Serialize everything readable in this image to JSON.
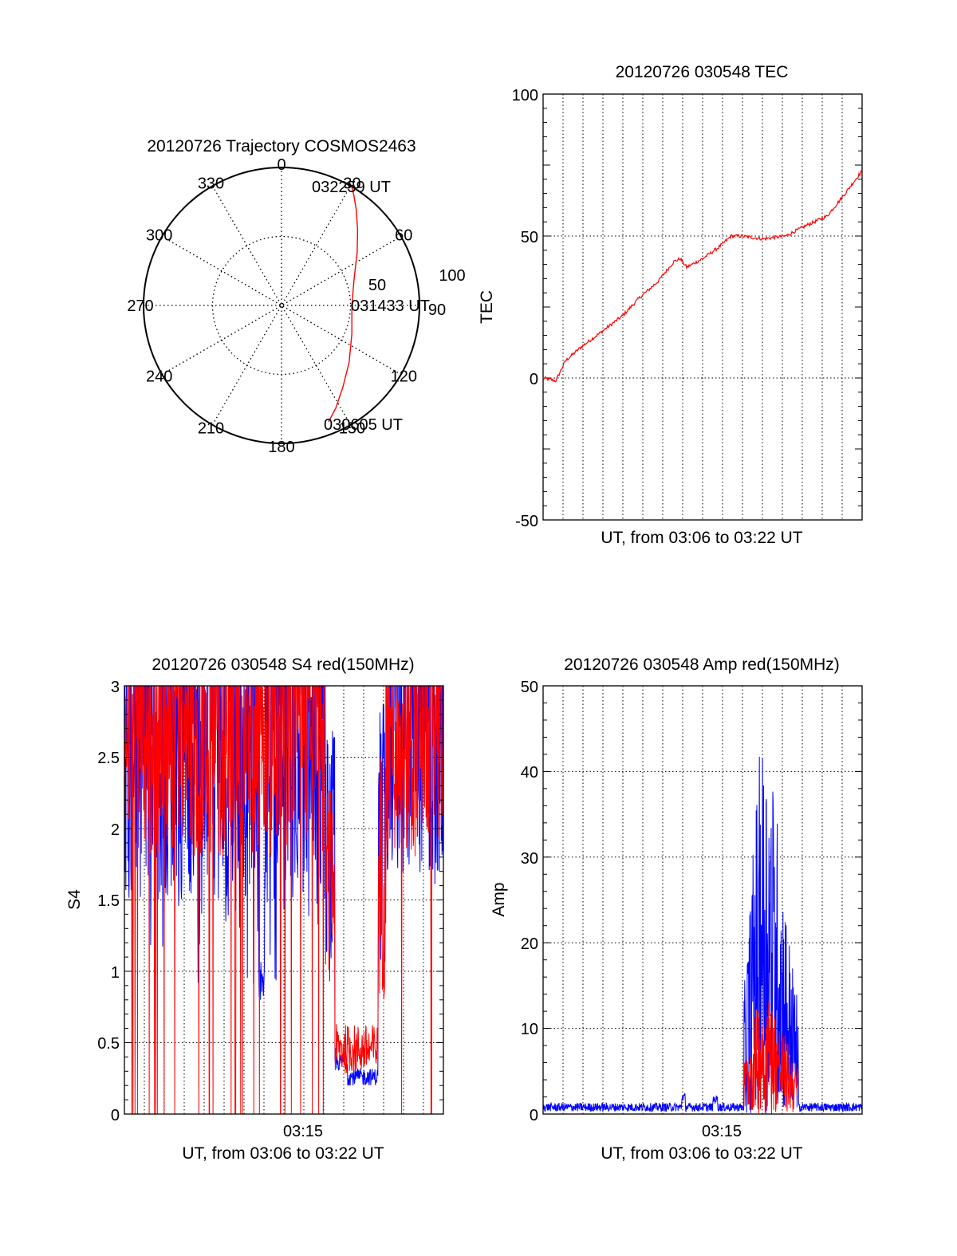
{
  "chart_data": [
    {
      "type": "polar",
      "title": "20120726 Trajectory COSMOS2463",
      "angle_labels": [
        "0",
        "30",
        "60",
        "90",
        "120",
        "150",
        "180",
        "210",
        "240",
        "270",
        "300",
        "330"
      ],
      "radius_labels": [
        "50",
        "100"
      ],
      "rlim": [
        0,
        100
      ],
      "grid": true,
      "track_color": "#ff0000",
      "series": [
        {
          "azimuth": [
            158,
            152,
            143,
            130,
            112,
            90,
            70,
            55,
            45,
            38,
            33,
            30.5
          ],
          "radius": [
            91,
            84,
            74,
            64,
            55,
            51,
            56,
            67,
            78,
            88,
            96,
            100
          ]
        }
      ],
      "annotations": [
        {
          "text": "032259 UT",
          "azimuth": 20,
          "radius": 95
        },
        {
          "text": "031433 UT",
          "azimuth": 90,
          "radius": 50
        },
        {
          "text": "030605 UT",
          "azimuth": 155,
          "radius": 95
        }
      ]
    },
    {
      "type": "line",
      "title": "20120726 030548 TEC",
      "xlabel": "UT, from 03:06 to 03:22 UT",
      "ylabel": "TEC",
      "ylim": [
        -50,
        100
      ],
      "yticks": [
        "100",
        "50",
        "0",
        "-50"
      ],
      "grid": true,
      "series": [
        {
          "color": "#ff0000",
          "x": [
            0,
            0.04,
            0.07,
            0.12,
            0.18,
            0.25,
            0.3,
            0.36,
            0.41,
            0.43,
            0.45,
            0.5,
            0.55,
            0.59,
            0.62,
            0.69,
            0.76,
            0.83,
            0.89,
            0.94,
            1
          ],
          "y": [
            0,
            -1,
            6,
            11,
            16,
            22,
            28,
            34,
            41,
            42,
            39,
            42,
            46,
            50,
            50,
            49,
            50,
            54,
            57,
            64,
            73
          ]
        }
      ]
    },
    {
      "type": "line",
      "title": "20120726 030548 S4 red(150MHz)",
      "xlabel": "UT, from 03:06 to 03:22 UT",
      "ylabel": "S4",
      "ylim": [
        0,
        3
      ],
      "yticks": [
        "3",
        "2.5",
        "2",
        "1.5",
        "1",
        "0.5",
        "0"
      ],
      "xticks": [
        "03:15"
      ],
      "grid": true,
      "series": [
        {
          "color": "#0000ff",
          "description": "S4 blue channel, saturated then drops to ~0.25 between 03:16 and 03:18"
        },
        {
          "color": "#ff0000",
          "description": "S4 red channel, saturated then ~0.4 between 03:16 and 03:18"
        }
      ]
    },
    {
      "type": "line",
      "title": "20120726 030548 Amp red(150MHz)",
      "xlabel": "UT, from 03:06 to 03:22 UT",
      "ylabel": "Amp",
      "ylim": [
        0,
        50
      ],
      "yticks": [
        "50",
        "40",
        "30",
        "20",
        "10",
        "0"
      ],
      "xticks": [
        "03:15"
      ],
      "grid": true,
      "series": [
        {
          "color": "#0000ff",
          "description": "blue amplitude, peak ~40 near 03:15:30"
        },
        {
          "color": "#ff0000",
          "description": "red amplitude, peak ~11 near 03:15:30"
        }
      ]
    }
  ]
}
